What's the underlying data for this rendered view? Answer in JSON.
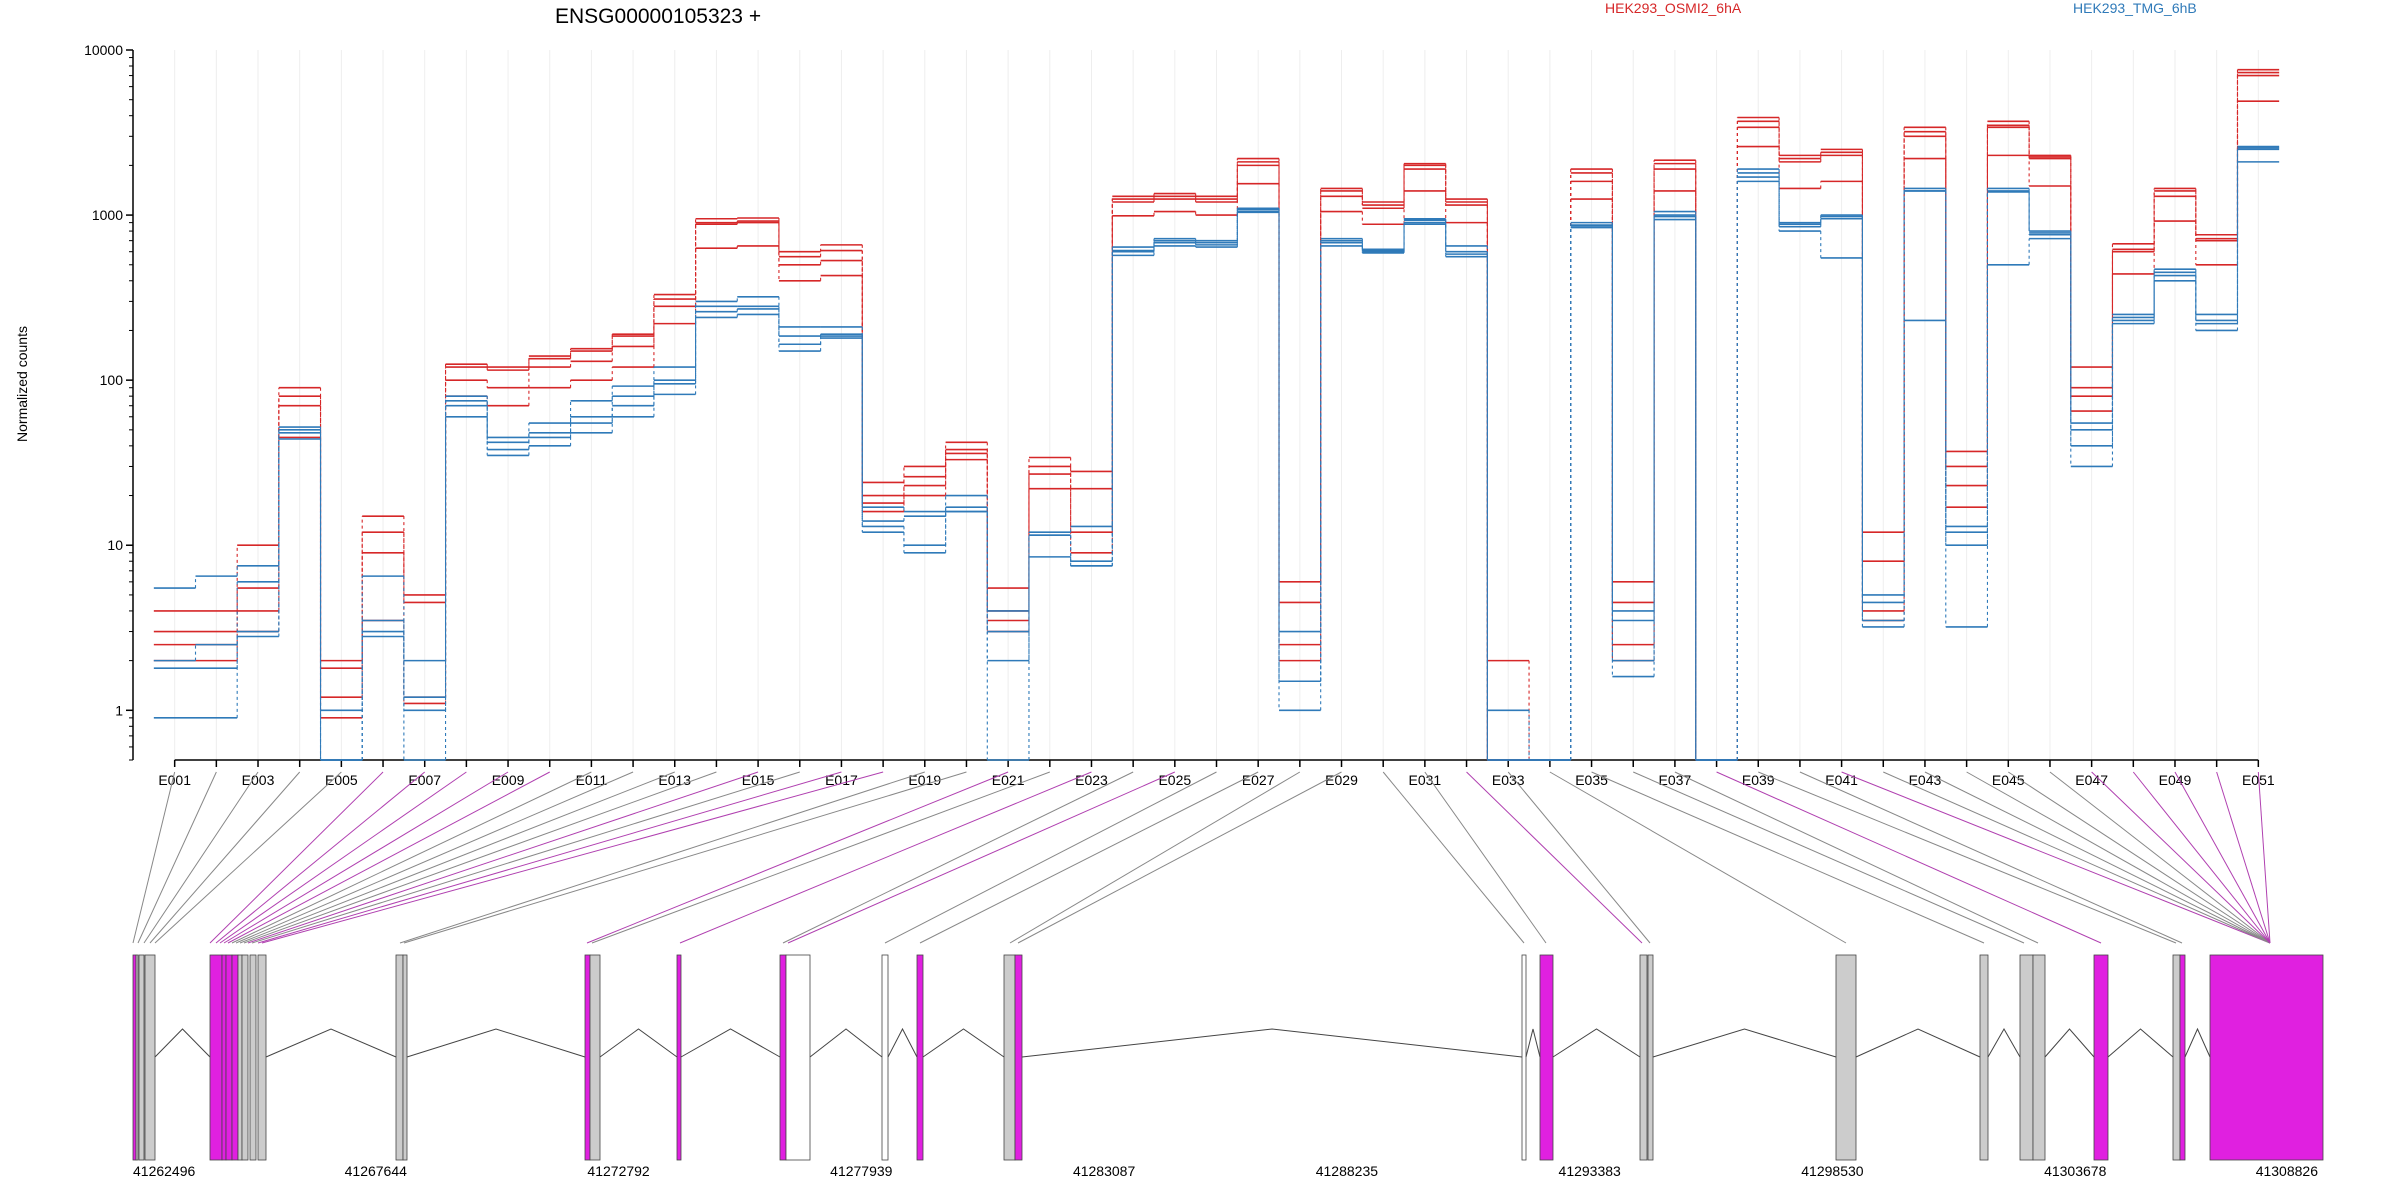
{
  "chart_data": {
    "type": "line",
    "title": "ENSG00000105323 +",
    "ylabel": "Normalized counts",
    "yscale": "log",
    "ylim": [
      0.5,
      10000
    ],
    "yticks": [
      1,
      10,
      100,
      1000,
      10000
    ],
    "ytick_labels": [
      "1",
      "10",
      "100",
      "1000",
      "10000"
    ],
    "grid": true,
    "legend_position": "top",
    "colors": {
      "HEK293_OSMI2_6hA": "#d62728",
      "HEK293_TMG_6hB": "#2f7ab9"
    },
    "categories": [
      "E001",
      "E002",
      "E003",
      "E004",
      "E005",
      "E006",
      "E007",
      "E008",
      "E009",
      "E010",
      "E011",
      "E012",
      "E013",
      "E014",
      "E015",
      "E016",
      "E017",
      "E018",
      "E019",
      "E020",
      "E021",
      "E022",
      "E023",
      "E024",
      "E025",
      "E026",
      "E027",
      "E028",
      "E029",
      "E030",
      "E031",
      "E032",
      "E033",
      "E034",
      "E035",
      "E036",
      "E037",
      "E038",
      "E039",
      "E040",
      "E041",
      "E042",
      "E043",
      "E044",
      "E045",
      "E046",
      "E047",
      "E048",
      "E049",
      "E050",
      "E051"
    ],
    "tick_labels": [
      "E001",
      "E003",
      "E005",
      "E007",
      "E009",
      "E011",
      "E013",
      "E015",
      "E017",
      "E019",
      "E021",
      "E023",
      "E025",
      "E027",
      "E029",
      "E031",
      "E033",
      "E035",
      "E037",
      "E039",
      "E041",
      "E043",
      "E045",
      "E047",
      "E049",
      "E051"
    ],
    "series": [
      {
        "name": "HEK293_OSMI2_6hA",
        "group": "HEK293_OSMI2_6hA",
        "values": [
          4,
          4,
          10,
          90,
          2,
          15,
          5,
          125,
          120,
          140,
          155,
          190,
          330,
          950,
          960,
          600,
          660,
          24,
          30,
          42,
          5.5,
          34,
          28,
          1300,
          1350,
          1300,
          2200,
          6,
          1450,
          1200,
          2050,
          1250,
          2,
          0.5,
          1900,
          6,
          2150,
          0.5,
          3900,
          2300,
          2500,
          12,
          3400,
          37,
          3700,
          2300,
          120,
          670,
          1450,
          760,
          7600
        ]
      },
      {
        "name": "HEK293_OSMI2_6hA",
        "group": "HEK293_OSMI2_6hA",
        "values": [
          3,
          3,
          5.5,
          80,
          1.8,
          12,
          4.5,
          120,
          115,
          135,
          150,
          185,
          310,
          900,
          920,
          560,
          610,
          20,
          26,
          38,
          4,
          30,
          22,
          1250,
          1300,
          1250,
          2100,
          4.5,
          1400,
          1150,
          2000,
          1200,
          0.5,
          0.5,
          1800,
          4.5,
          2050,
          0.5,
          3700,
          2200,
          2400,
          8,
          3200,
          30,
          3500,
          2250,
          90,
          620,
          1400,
          720,
          7300
        ]
      },
      {
        "name": "HEK293_OSMI2_6hA",
        "group": "HEK293_OSMI2_6hA",
        "values": [
          2.5,
          2.5,
          4,
          70,
          1.2,
          9,
          1.2,
          100,
          90,
          120,
          130,
          160,
          280,
          880,
          900,
          500,
          530,
          18,
          23,
          36,
          3.5,
          27,
          12,
          1200,
          1250,
          1200,
          2000,
          2.5,
          1300,
          1100,
          1900,
          1150,
          0.5,
          0.5,
          1600,
          2.5,
          1900,
          0.5,
          3400,
          2100,
          2300,
          4,
          3000,
          23,
          3400,
          2200,
          80,
          600,
          1300,
          700,
          7000
        ]
      },
      {
        "name": "HEK293_OSMI2_6hA",
        "group": "HEK293_OSMI2_6hA",
        "values": [
          2,
          2,
          3,
          45,
          0.9,
          3.5,
          1.1,
          80,
          70,
          90,
          100,
          120,
          220,
          630,
          650,
          400,
          430,
          16,
          20,
          33,
          3,
          22,
          9,
          990,
          1050,
          1000,
          1550,
          2,
          1050,
          880,
          1400,
          900,
          0.5,
          0.5,
          1250,
          2,
          1400,
          0.5,
          2600,
          1450,
          1600,
          3.5,
          2200,
          17,
          2300,
          1500,
          65,
          440,
          920,
          500,
          4900
        ]
      },
      {
        "name": "HEK293_TMG_6hB",
        "group": "HEK293_TMG_6hB",
        "values": [
          5.5,
          6.5,
          7.5,
          52,
          1,
          6.5,
          2,
          80,
          45,
          55,
          75,
          92,
          120,
          300,
          320,
          210,
          210,
          17,
          16,
          20,
          4,
          12,
          13,
          640,
          720,
          700,
          1100,
          1.5,
          720,
          620,
          950,
          650,
          1,
          0.5,
          900,
          3.5,
          1050,
          0.5,
          1900,
          900,
          1000,
          5,
          1450,
          13,
          1450,
          800,
          55,
          250,
          470,
          250,
          2600
        ]
      },
      {
        "name": "HEK293_TMG_6hB",
        "group": "HEK293_TMG_6hB",
        "values": [
          2,
          2.5,
          6,
          50,
          0.5,
          3.5,
          1.2,
          75,
          42,
          48,
          60,
          80,
          100,
          280,
          280,
          185,
          190,
          14,
          15,
          17,
          3,
          11.5,
          8,
          610,
          700,
          680,
          1080,
          3,
          700,
          610,
          930,
          600,
          0.5,
          0.5,
          870,
          4,
          1000,
          0.5,
          1800,
          880,
          980,
          4.5,
          1400,
          12,
          1400,
          780,
          50,
          240,
          450,
          230,
          2550
        ]
      },
      {
        "name": "HEK293_TMG_6hB",
        "group": "HEK293_TMG_6hB",
        "values": [
          1.8,
          1.8,
          3,
          48,
          0.5,
          3,
          1,
          70,
          38,
          45,
          55,
          70,
          95,
          260,
          270,
          165,
          185,
          13,
          10,
          16,
          2,
          11.5,
          7.5,
          600,
          680,
          660,
          1050,
          1.5,
          680,
          600,
          900,
          580,
          0.5,
          0.5,
          860,
          2,
          980,
          0.5,
          1700,
          850,
          950,
          3.5,
          1400,
          10,
          1380,
          760,
          40,
          230,
          430,
          220,
          2500
        ]
      },
      {
        "name": "HEK293_TMG_6hB",
        "group": "HEK293_TMG_6hB",
        "values": [
          0.9,
          0.9,
          2.8,
          44,
          0.5,
          2.8,
          0.5,
          60,
          35,
          40,
          48,
          60,
          82,
          240,
          250,
          150,
          180,
          12,
          9,
          16,
          0.5,
          8.5,
          7.5,
          570,
          650,
          640,
          1040,
          1,
          650,
          590,
          880,
          560,
          0.5,
          0.5,
          840,
          1.6,
          940,
          0.5,
          1600,
          800,
          550,
          3.2,
          230,
          3.2,
          500,
          720,
          30,
          220,
          400,
          200,
          2100
        ]
      }
    ],
    "genomic_axis": {
      "tick_labels": [
        "41262496",
        "41267644",
        "41272792",
        "41277939",
        "41283087",
        "41288235",
        "41293383",
        "41298530",
        "41303678",
        "41308826"
      ]
    }
  },
  "legend": {
    "a": "HEK293_OSMI2_6hA",
    "b": "HEK293_TMG_6hB"
  }
}
